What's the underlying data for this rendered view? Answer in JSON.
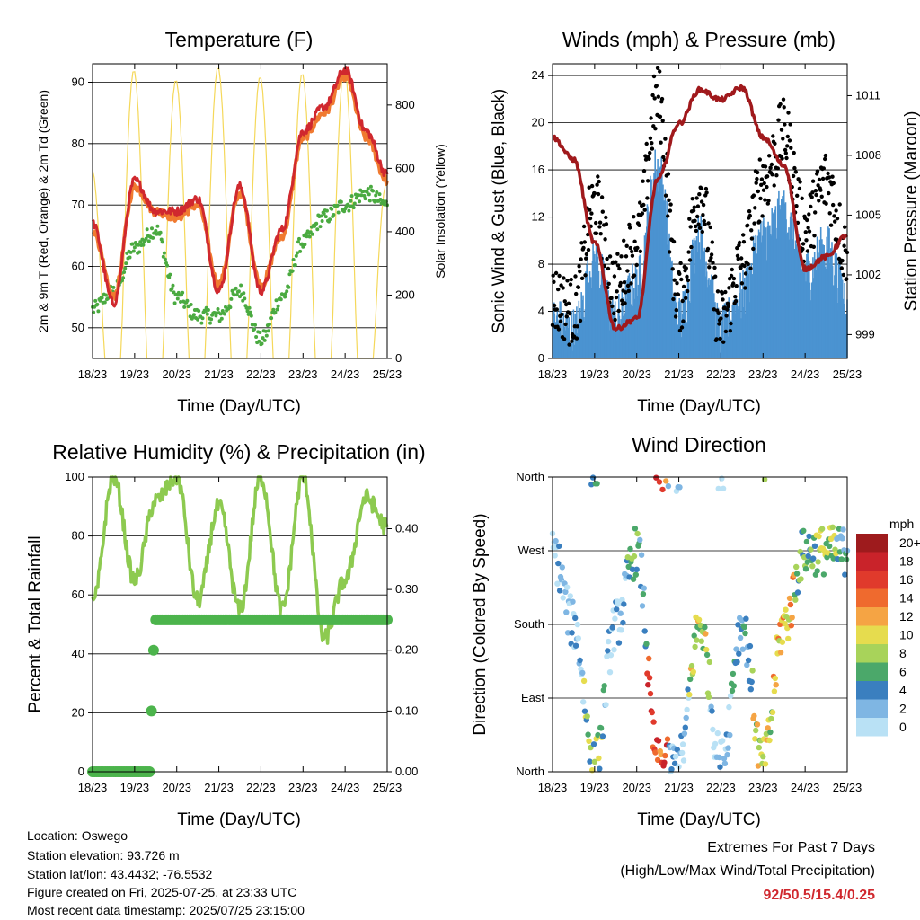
{
  "time_ticks": [
    "18/23",
    "19/23",
    "20/23",
    "21/23",
    "22/23",
    "23/23",
    "24/23",
    "25/23"
  ],
  "legend": {
    "title": "mph",
    "labels": [
      "20+",
      "18",
      "16",
      "14",
      "12",
      "10",
      "8",
      "6",
      "4",
      "2",
      "0"
    ],
    "colors": [
      "#9e1b1d",
      "#c9232a",
      "#e03a2c",
      "#ef6a2e",
      "#f5a444",
      "#e6dc4e",
      "#a8d35a",
      "#4ba86a",
      "#3a7fbf",
      "#7fb6e3",
      "#b9e1f5"
    ]
  },
  "panels": {
    "temp": {
      "title": "Temperature (F)",
      "xlabel": "Time (Day/UTC)",
      "ylabel_left": "2m & 9m T (Red, Orange) & 2m Td (Green)",
      "ylabel_right": "Solar Insolation (Yellow)",
      "left_ticks": [
        "50",
        "60",
        "70",
        "80",
        "90"
      ],
      "right_ticks": [
        "0",
        "200",
        "400",
        "600",
        "800"
      ]
    },
    "wind": {
      "title": "Winds (mph) & Pressure (mb)",
      "xlabel": "Time (Day/UTC)",
      "ylabel_left": "Sonic Wind & Gust (Blue, Black)",
      "ylabel_right": "Station Pressure (Maroon)",
      "left_ticks": [
        "0",
        "4",
        "8",
        "12",
        "16",
        "20",
        "24"
      ],
      "right_ticks": [
        "999",
        "1002",
        "1005",
        "1008",
        "1011"
      ]
    },
    "rh": {
      "title": "Relative Humidity (%) & Precipitation (in)",
      "xlabel": "Time (Day/UTC)",
      "ylabel_left": "Percent & Total Rainfall",
      "left_ticks": [
        "0",
        "20",
        "40",
        "60",
        "80",
        "100"
      ],
      "right_ticks": [
        "0.00",
        "0.10",
        "0.20",
        "0.30",
        "0.40"
      ]
    },
    "dir": {
      "title": "Wind Direction",
      "xlabel": "Time (Day/UTC)",
      "ylabel_left": "Direction (Colored By Speed)",
      "left_ticks": [
        "North",
        "East",
        "South",
        "West",
        "North"
      ]
    }
  },
  "chart_data": [
    {
      "type": "line",
      "title": "Temperature (F)",
      "xlabel": "Time (Day/UTC)",
      "ylabel": "2m & 9m T (Red, Orange) & 2m Td (Green)",
      "ylabel_right": "Solar Insolation (Yellow)",
      "x": [
        "18/23",
        "18/23+6h",
        "19/23",
        "19/23+6h",
        "20/23",
        "20/23+6h",
        "21/23",
        "21/23+6h",
        "22/23",
        "22/23+6h",
        "23/23",
        "23/23+6h",
        "24/23",
        "24/23+6h",
        "25/23"
      ],
      "ylim": [
        45,
        93
      ],
      "ylim_right": [
        0,
        930
      ],
      "series": [
        {
          "name": "2m T",
          "color": "#d0282e",
          "values": [
            67,
            54,
            74,
            69,
            69,
            71,
            56,
            73,
            56,
            66,
            82,
            86,
            92,
            82,
            75
          ]
        },
        {
          "name": "9m T",
          "color": "#f07a30",
          "values": [
            66,
            55,
            73,
            69,
            68,
            70,
            57,
            72,
            57,
            65,
            81,
            85,
            91,
            81,
            74
          ]
        },
        {
          "name": "2m Td",
          "color": "#4aaa40",
          "values": [
            53,
            56,
            63,
            66,
            55,
            52,
            52,
            56,
            48,
            55,
            64,
            68,
            70,
            72,
            70
          ]
        },
        {
          "name": "Solar Insolation",
          "color": "#f5d85a",
          "values": [
            600,
            0,
            910,
            0,
            880,
            0,
            920,
            0,
            890,
            0,
            900,
            0,
            920,
            0,
            550
          ]
        }
      ]
    },
    {
      "type": "line",
      "title": "Winds (mph) & Pressure (mb)",
      "xlabel": "Time (Day/UTC)",
      "ylabel": "Sonic Wind & Gust (Blue, Black)",
      "ylabel_right": "Station Pressure (Maroon)",
      "x": [
        "18/23",
        "18/23+6h",
        "19/23",
        "19/23+6h",
        "20/23",
        "20/23+6h",
        "21/23",
        "21/23+6h",
        "22/23",
        "22/23+6h",
        "23/23",
        "23/23+6h",
        "24/23",
        "24/23+6h",
        "25/23"
      ],
      "ylim": [
        0,
        25
      ],
      "ylim_right": [
        997.8,
        1012.6
      ],
      "series": [
        {
          "name": "Sonic Wind",
          "color": "#4b93d1",
          "values": [
            3,
            2,
            8,
            3,
            6,
            16,
            3,
            10,
            2,
            5,
            10,
            12,
            7,
            9,
            5
          ]
        },
        {
          "name": "Gust",
          "color": "#000000",
          "values": [
            5,
            4,
            13,
            6,
            10,
            22,
            5,
            14,
            3,
            8,
            15,
            19,
            11,
            15,
            9
          ]
        },
        {
          "name": "Station Pressure",
          "color": "#a0191c",
          "values": [
            1008.9,
            1007.8,
            1003.6,
            999.3,
            999.8,
            1006.8,
            1009.6,
            1011.3,
            1010.8,
            1011.4,
            1008.9,
            1007.5,
            1002.3,
            1002.9,
            1004.0
          ]
        }
      ]
    },
    {
      "type": "line",
      "title": "Relative Humidity (%) & Precipitation (in)",
      "xlabel": "Time (Day/UTC)",
      "ylabel": "Percent & Total Rainfall",
      "x": [
        "18/23",
        "18/23+6h",
        "19/23",
        "19/23+6h",
        "20/23",
        "20/23+6h",
        "21/23",
        "21/23+6h",
        "22/23",
        "22/23+6h",
        "23/23",
        "23/23+6h",
        "24/23",
        "24/23+6h",
        "25/23"
      ],
      "ylim": [
        0,
        100
      ],
      "ylim_right": [
        0,
        0.485
      ],
      "series": [
        {
          "name": "Relative Humidity",
          "color": "#8dca50",
          "values": [
            57,
            100,
            65,
            92,
            100,
            58,
            90,
            55,
            100,
            55,
            100,
            45,
            65,
            93,
            83
          ]
        },
        {
          "name": "Total Precipitation",
          "color": "#4cb44c",
          "values": [
            0,
            0,
            0,
            0.25,
            0.25,
            0.25,
            0.25,
            0.25,
            0.25,
            0.25,
            0.25,
            0.25,
            0.25,
            0.25,
            0.25
          ]
        }
      ]
    },
    {
      "type": "scatter",
      "title": "Wind Direction",
      "xlabel": "Time (Day/UTC)",
      "ylabel": "Direction (Colored By Speed)",
      "ylim": [
        "North",
        "North"
      ],
      "series": [
        {
          "name": "Direction",
          "x": [
            "18/23",
            "18/23+6h",
            "19/23",
            "19/23+6h",
            "20/23",
            "20/23+6h",
            "21/23",
            "21/23+6h",
            "22/23",
            "22/23+6h",
            "23/23",
            "23/23+6h",
            "24/23",
            "24/23+6h",
            "25/23"
          ],
          "values": [
            "West",
            "South",
            "North",
            "South",
            "West",
            "North",
            "North",
            "South",
            "North",
            "South",
            "North",
            "South",
            "West",
            "West",
            "West"
          ]
        }
      ]
    }
  ],
  "footer": {
    "location": "Location: Oswego",
    "elevation": "Station elevation: 93.726 m",
    "latlon": "Station lat/lon: 43.4432; -76.5532",
    "created": "Figure created on Fri, 2025-07-25, at 23:33 UTC",
    "recent": "Most recent data timestamp: 2025/07/25 23:15:00"
  },
  "extremes": {
    "title": "Extremes For Past 7 Days",
    "subtitle": "(High/Low/Max Wind/Total Precipitation)",
    "values": "92/50.5/15.4/0.25"
  }
}
